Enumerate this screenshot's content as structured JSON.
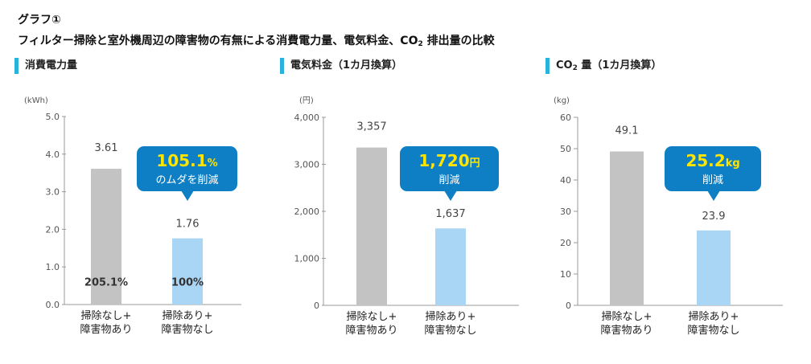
{
  "figure": {
    "label": "グラフ①",
    "title_pre": "フィルター掃除と室外機周辺の障害物の有無による消費電力量、電気料金、CO",
    "title_sub": "2",
    "title_post": " 排出量の比較"
  },
  "colors": {
    "accent": "#29b3dc",
    "bar_without": "#c3c3c3",
    "bar_with": "#a9d6f4",
    "callout": "#0e7fc4",
    "callout_text": "#ffe500",
    "axis": "#999999"
  },
  "chart_data": [
    {
      "type": "bar",
      "heading": {
        "pre": "消費電力量",
        "sub": "",
        "post": ""
      },
      "unit": "(kWh)",
      "ylim": [
        0,
        5
      ],
      "yticks": [
        "0.0",
        "1.0",
        "2.0",
        "3.0",
        "4.0",
        "5.0"
      ],
      "categories": [
        [
          "掃除なし+",
          "障害物あり"
        ],
        [
          "掃除あり+",
          "障害物なし"
        ]
      ],
      "values": [
        3.61,
        1.76
      ],
      "value_labels": [
        "3.61",
        "1.76"
      ],
      "inbar_labels": [
        "205.1%",
        "100%"
      ],
      "callout": {
        "big": "105.1",
        "unit": "%",
        "sub": "のムダを削減"
      }
    },
    {
      "type": "bar",
      "heading": {
        "pre": "電気料金（1カ月換算）",
        "sub": "",
        "post": ""
      },
      "unit": "(円)",
      "ylim": [
        0,
        4000
      ],
      "yticks": [
        "0",
        "1,000",
        "2,000",
        "3,000",
        "4,000"
      ],
      "categories": [
        [
          "掃除なし+",
          "障害物あり"
        ],
        [
          "掃除あり+",
          "障害物なし"
        ]
      ],
      "values": [
        3357,
        1637
      ],
      "value_labels": [
        "3,357",
        "1,637"
      ],
      "inbar_labels": [
        "",
        ""
      ],
      "callout": {
        "big": "1,720",
        "unit": "円",
        "sub": "削減"
      }
    },
    {
      "type": "bar",
      "heading": {
        "pre": "CO",
        "sub": "2",
        "post": " 量（1カ月換算）"
      },
      "unit": "(kg)",
      "ylim": [
        0,
        60
      ],
      "yticks": [
        "0",
        "10",
        "20",
        "30",
        "40",
        "50",
        "60"
      ],
      "categories": [
        [
          "掃除なし+",
          "障害物あり"
        ],
        [
          "掃除あり+",
          "障害物なし"
        ]
      ],
      "values": [
        49.1,
        23.9
      ],
      "value_labels": [
        "49.1",
        "23.9"
      ],
      "inbar_labels": [
        "",
        ""
      ],
      "callout": {
        "big": "25.2",
        "unit": "kg",
        "sub": "削減"
      }
    }
  ]
}
